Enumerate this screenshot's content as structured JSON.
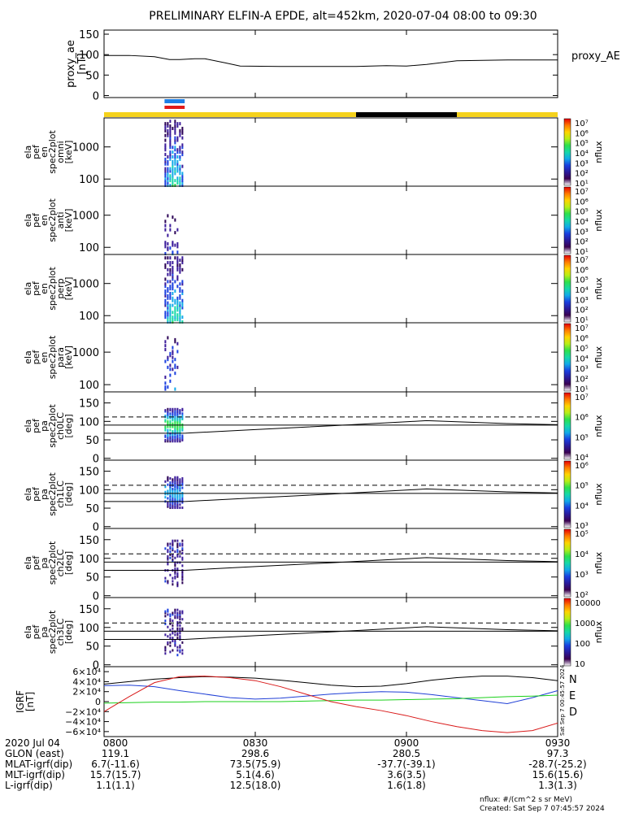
{
  "title": "PRELIMINARY ELFIN-A EPDE, alt=452km, 2020-07-04 08:00 to 09:30",
  "colors": {
    "bar_yellow": "#f5d21c",
    "bar_black": "#000000",
    "bar_blue": "#1e7fe6",
    "bar_red": "#e21a1a",
    "geo_N": "#1f3fd6",
    "geo_E": "#1bd01b",
    "geo_D": "#d91a1a",
    "geo_total": "#000000"
  },
  "status_bars": {
    "segments": [
      {
        "start": "08:00",
        "end": "08:50",
        "color": "yellow"
      },
      {
        "start": "08:50",
        "end": "09:10",
        "color": "black"
      },
      {
        "start": "09:10",
        "end": "09:30",
        "color": "yellow"
      }
    ],
    "science_zone": {
      "start": "08:12",
      "end": "08:16"
    }
  },
  "chart_data": [
    {
      "type": "line",
      "panel": "proxy_ae",
      "ylabel": [
        "proxy_ae",
        "[nT]"
      ],
      "legend": "proxy_AE",
      "yticks": [
        "150",
        "100",
        "50",
        "0"
      ],
      "ylim": [
        -5,
        160
      ],
      "x": [
        "08:00",
        "08:05",
        "08:10",
        "08:13",
        "08:15",
        "08:18",
        "08:20",
        "08:24",
        "08:27",
        "08:35",
        "08:50",
        "08:56",
        "09:00",
        "09:04",
        "09:10",
        "09:20",
        "09:25",
        "09:30"
      ],
      "values": [
        98,
        98,
        95,
        88,
        88,
        90,
        90,
        80,
        72,
        71,
        71,
        73,
        72,
        76,
        85,
        87,
        87,
        87
      ]
    },
    {
      "type": "heatmap",
      "panel": "omni",
      "ylabel": [
        "ela",
        "pef",
        "en",
        "spec2plot",
        "omni",
        "[keV]"
      ],
      "yticks": [
        "1000",
        "100"
      ],
      "zlabel": "nflux",
      "zticks": [
        "10⁷",
        "10⁶",
        "10⁵",
        "10⁴",
        "10³",
        "10²",
        "10¹"
      ],
      "x_range": [
        "08:12",
        "08:16"
      ],
      "y_range_keV": [
        60,
        7000
      ],
      "peak_nflux": 100000
    },
    {
      "type": "heatmap",
      "panel": "anti",
      "ylabel": [
        "ela",
        "pef",
        "en",
        "spec2plot",
        "anti",
        "[keV]"
      ],
      "yticks": [
        "1000",
        "100"
      ],
      "zlabel": "nflux",
      "zticks": [
        "10⁷",
        "10⁶",
        "10⁵",
        "10⁴",
        "10³",
        "10²",
        "10¹"
      ],
      "x_range": [
        "08:12",
        "08:15"
      ],
      "y_range_keV": [
        60,
        1000
      ],
      "peak_nflux": 1000
    },
    {
      "type": "heatmap",
      "panel": "perp",
      "ylabel": [
        "ela",
        "pef",
        "en",
        "spec2plot",
        "perp",
        "[keV]"
      ],
      "yticks": [
        "1000",
        "100"
      ],
      "zlabel": "nflux",
      "zticks": [
        "10⁷",
        "10⁶",
        "10⁵",
        "10⁴",
        "10³",
        "10²",
        "10¹"
      ],
      "x_range": [
        "08:12",
        "08:16"
      ],
      "y_range_keV": [
        60,
        7000
      ],
      "peak_nflux": 100000
    },
    {
      "type": "heatmap",
      "panel": "para",
      "ylabel": [
        "ela",
        "pef",
        "en",
        "spec2plot",
        "para",
        "[keV]"
      ],
      "yticks": [
        "1000",
        "100"
      ],
      "zlabel": "nflux",
      "zticks": [
        "10⁷",
        "10⁶",
        "10⁵",
        "10⁴",
        "10³",
        "10²",
        "10¹"
      ],
      "x_range": [
        "08:12",
        "08:15"
      ],
      "y_range_keV": [
        60,
        3000
      ],
      "peak_nflux": 10000
    },
    {
      "type": "heatmap",
      "panel": "ch0LC",
      "ylabel": [
        "ela",
        "pef",
        "pa",
        "spec2plot",
        "ch0LC",
        "[deg]"
      ],
      "yticks": [
        "150",
        "100",
        "50",
        "0"
      ],
      "zlabel": "nflux",
      "zticks": [
        "10⁷",
        "10⁶",
        "10⁵",
        "10⁴"
      ],
      "x_range": [
        "08:12",
        "08:16"
      ],
      "y_range_deg": [
        45,
        135
      ],
      "loss_cone_dashed_deg": 112,
      "loss_cone_solid_deg": 90,
      "lc_x": [
        "08:16",
        "08:30",
        "08:45",
        "09:00",
        "09:04",
        "09:10",
        "09:20",
        "09:30"
      ],
      "lc_deg": [
        68,
        78,
        88,
        99,
        102,
        99,
        94,
        91
      ]
    },
    {
      "type": "heatmap",
      "panel": "ch1LC",
      "ylabel": [
        "ela",
        "pef",
        "pa",
        "spec2plot",
        "ch1LC",
        "[deg]"
      ],
      "yticks": [
        "150",
        "100",
        "50",
        "0"
      ],
      "zlabel": "nflux",
      "zticks": [
        "10⁶",
        "10⁵",
        "10⁴",
        "10³"
      ],
      "x_range": [
        "08:12",
        "08:16"
      ],
      "y_range_deg": [
        50,
        135
      ],
      "loss_cone_dashed_deg": 112,
      "loss_cone_solid_deg": 90,
      "lc_x": [
        "08:16",
        "08:30",
        "08:45",
        "09:00",
        "09:04",
        "09:10",
        "09:20",
        "09:30"
      ],
      "lc_deg": [
        68,
        78,
        88,
        99,
        102,
        99,
        94,
        91
      ]
    },
    {
      "type": "heatmap",
      "panel": "ch2LC",
      "ylabel": [
        "ela",
        "pef",
        "pa",
        "spec2plot",
        "ch2LC",
        "[deg]"
      ],
      "yticks": [
        "150",
        "100",
        "50",
        "0"
      ],
      "zlabel": "nflux",
      "zticks": [
        "10⁵",
        "10⁴",
        "10³",
        "10²"
      ],
      "x_range": [
        "08:12",
        "08:16"
      ],
      "y_range_deg": [
        25,
        150
      ],
      "loss_cone_dashed_deg": 112,
      "loss_cone_solid_deg": 90,
      "lc_x": [
        "08:16",
        "08:30",
        "08:45",
        "09:00",
        "09:04",
        "09:10",
        "09:20",
        "09:30"
      ],
      "lc_deg": [
        68,
        78,
        88,
        99,
        102,
        99,
        94,
        91
      ]
    },
    {
      "type": "heatmap",
      "panel": "ch3LC",
      "ylabel": [
        "ela",
        "pef",
        "pa",
        "spec2plot",
        "ch3LC",
        "[deg]"
      ],
      "yticks": [
        "150",
        "100",
        "50",
        "0"
      ],
      "zlabel": "nflux",
      "zticks": [
        "10000",
        "1000",
        "100",
        "10"
      ],
      "x_range": [
        "08:12",
        "08:16"
      ],
      "y_range_deg": [
        25,
        150
      ],
      "loss_cone_dashed_deg": 112,
      "loss_cone_solid_deg": 90,
      "lc_x": [
        "08:16",
        "08:30",
        "08:45",
        "09:00",
        "09:04",
        "09:10",
        "09:20",
        "09:30"
      ],
      "lc_deg": [
        68,
        78,
        88,
        99,
        102,
        99,
        94,
        91
      ]
    },
    {
      "type": "line",
      "panel": "IGRF",
      "ylabel": [
        "IGRF",
        "[nT]"
      ],
      "yticks": [
        "6×10⁴",
        "4×10⁴",
        "2×10⁴",
        "0",
        "−2×10⁴",
        "−4×10⁴",
        "−6×10⁴"
      ],
      "ylim": [
        -70000,
        70000
      ],
      "legend": [
        "N",
        "E",
        "D"
      ],
      "side_note": "Sat Sep  7 00:45:57 2024",
      "x": [
        "08:00",
        "08:05",
        "08:10",
        "08:15",
        "08:20",
        "08:25",
        "08:30",
        "08:35",
        "08:40",
        "08:45",
        "08:50",
        "08:55",
        "09:00",
        "09:05",
        "09:10",
        "09:15",
        "09:20",
        "09:25",
        "09:30"
      ],
      "series": [
        {
          "color": "black",
          "values": [
            35000,
            40000,
            45000,
            48000,
            50000,
            49000,
            47000,
            43000,
            38000,
            33000,
            30000,
            31000,
            36000,
            43000,
            48000,
            51000,
            51000,
            48000,
            42000
          ]
        },
        {
          "color": "blue",
          "values": [
            32000,
            33000,
            30000,
            22000,
            15000,
            8000,
            5000,
            7000,
            11000,
            15000,
            18000,
            20000,
            19000,
            14000,
            8000,
            2000,
            -4000,
            8000,
            22000
          ]
        },
        {
          "color": "green",
          "values": [
            -3000,
            -2000,
            -1000,
            -1000,
            0,
            0,
            0,
            0,
            1000,
            2000,
            3000,
            3000,
            4000,
            5000,
            6000,
            8000,
            10000,
            11000,
            13000
          ]
        },
        {
          "color": "red",
          "values": [
            -20000,
            10000,
            38000,
            50000,
            51000,
            48000,
            42000,
            30000,
            15000,
            0,
            -10000,
            -18000,
            -28000,
            -40000,
            -50000,
            -58000,
            -62000,
            -58000,
            -43000
          ]
        }
      ]
    }
  ],
  "x_axis": {
    "row_labels": [
      "2020 Jul 04",
      "GLON (east)",
      "MLAT-igrf(dip)",
      "MLT-igrf(dip)",
      "L-igrf(dip)"
    ],
    "columns": [
      {
        "time": "0800",
        "glon": "119.1",
        "mlat": "6.7(-11.6)",
        "mlt": "15.7(15.7)",
        "l": "1.1(1.1)"
      },
      {
        "time": "0830",
        "glon": "298.6",
        "mlat": "73.5(75.9)",
        "mlt": "5.1(4.6)",
        "l": "12.5(18.0)"
      },
      {
        "time": "0900",
        "glon": "280.5",
        "mlat": "-37.7(-39.1)",
        "mlt": "3.6(3.5)",
        "l": "1.6(1.8)"
      },
      {
        "time": "0930",
        "glon": "97.3",
        "mlat": "-28.7(-25.2)",
        "mlt": "15.6(15.6)",
        "l": "1.3(1.3)"
      }
    ]
  },
  "footer": {
    "units": "nflux: #/(cm^2 s sr MeV)",
    "created": "Created: Sat Sep  7 07:45:57 2024"
  }
}
